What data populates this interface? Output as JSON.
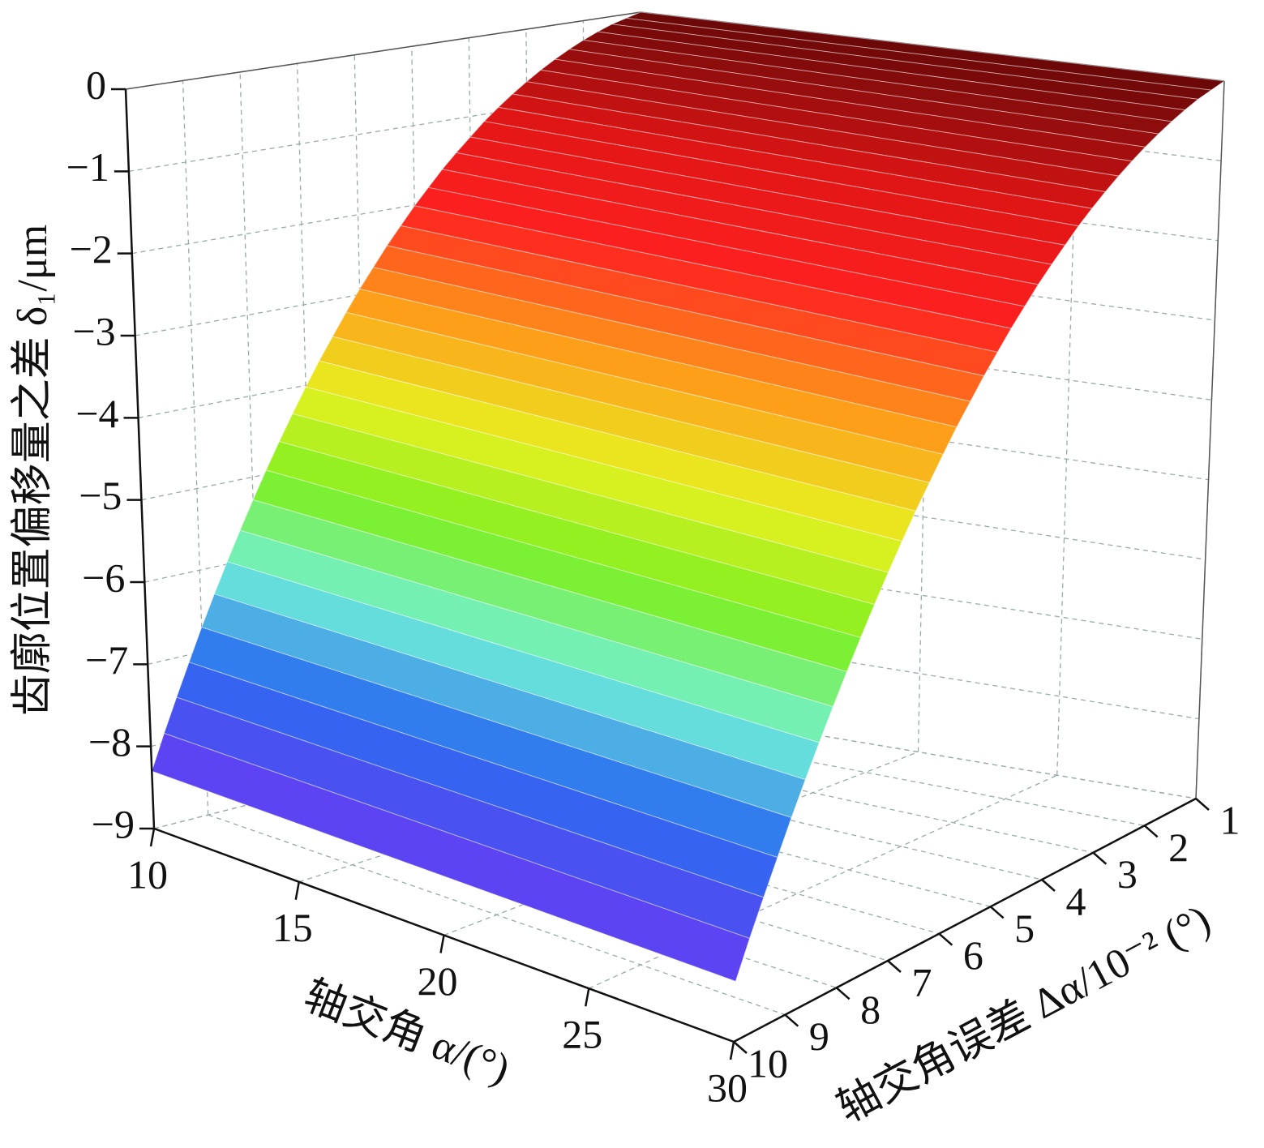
{
  "chart_data": {
    "type": "surface",
    "x_label": "轴交角误差 Δα/10⁻² (°)",
    "y_label": "轴交角 α/(°)",
    "z_label": "齿廓位置偏移量之差 δ₁/μm",
    "x": [
      1,
      1.25,
      1.5,
      1.75,
      2,
      2.25,
      2.5,
      2.75,
      3,
      3.25,
      3.5,
      3.75,
      4,
      4.25,
      4.5,
      4.75,
      5,
      5.25,
      5.5,
      5.75,
      6,
      6.25,
      6.5,
      6.75,
      7,
      7.25,
      7.5,
      7.75,
      8,
      8.25,
      8.5,
      8.75,
      9,
      9.25,
      9.5,
      9.75,
      10
    ],
    "values": [
      0,
      -0.05,
      -0.1,
      -0.17,
      -0.25,
      -0.34,
      -0.44,
      -0.55,
      -0.67,
      -0.8,
      -0.94,
      -1.09,
      -1.26,
      -1.43,
      -1.61,
      -1.81,
      -2.01,
      -2.23,
      -2.45,
      -2.69,
      -2.93,
      -3.19,
      -3.46,
      -3.73,
      -4.02,
      -4.32,
      -4.63,
      -4.95,
      -5.28,
      -5.62,
      -5.97,
      -6.33,
      -6.7,
      -7.09,
      -7.48,
      -7.88,
      -8.3
    ],
    "xlim": [
      1,
      10
    ],
    "xticks": [
      1,
      2,
      3,
      4,
      5,
      6,
      7,
      8,
      9,
      10
    ],
    "ylim": [
      10,
      30
    ],
    "yticks": [
      10,
      15,
      20,
      25,
      30
    ],
    "zlim": [
      -9,
      0
    ],
    "zticks": [
      {
        "value": -9,
        "label": "−9"
      },
      {
        "value": -8,
        "label": "−8"
      },
      {
        "value": -7,
        "label": "−7"
      },
      {
        "value": -6,
        "label": "−6"
      },
      {
        "value": -5,
        "label": "−5"
      },
      {
        "value": -4,
        "label": "−4"
      },
      {
        "value": -3,
        "label": "−3"
      },
      {
        "value": -2,
        "label": "−2"
      },
      {
        "value": -1,
        "label": "−1"
      },
      0
    ],
    "grid": true,
    "colormap": [
      "#9040f0",
      "#5844f2",
      "#2a70f0",
      "#70f0d8",
      "#7ef020",
      "#e8f020",
      "#ff9a1a",
      "#ff2020",
      "#e01515",
      "#6a0808"
    ]
  }
}
